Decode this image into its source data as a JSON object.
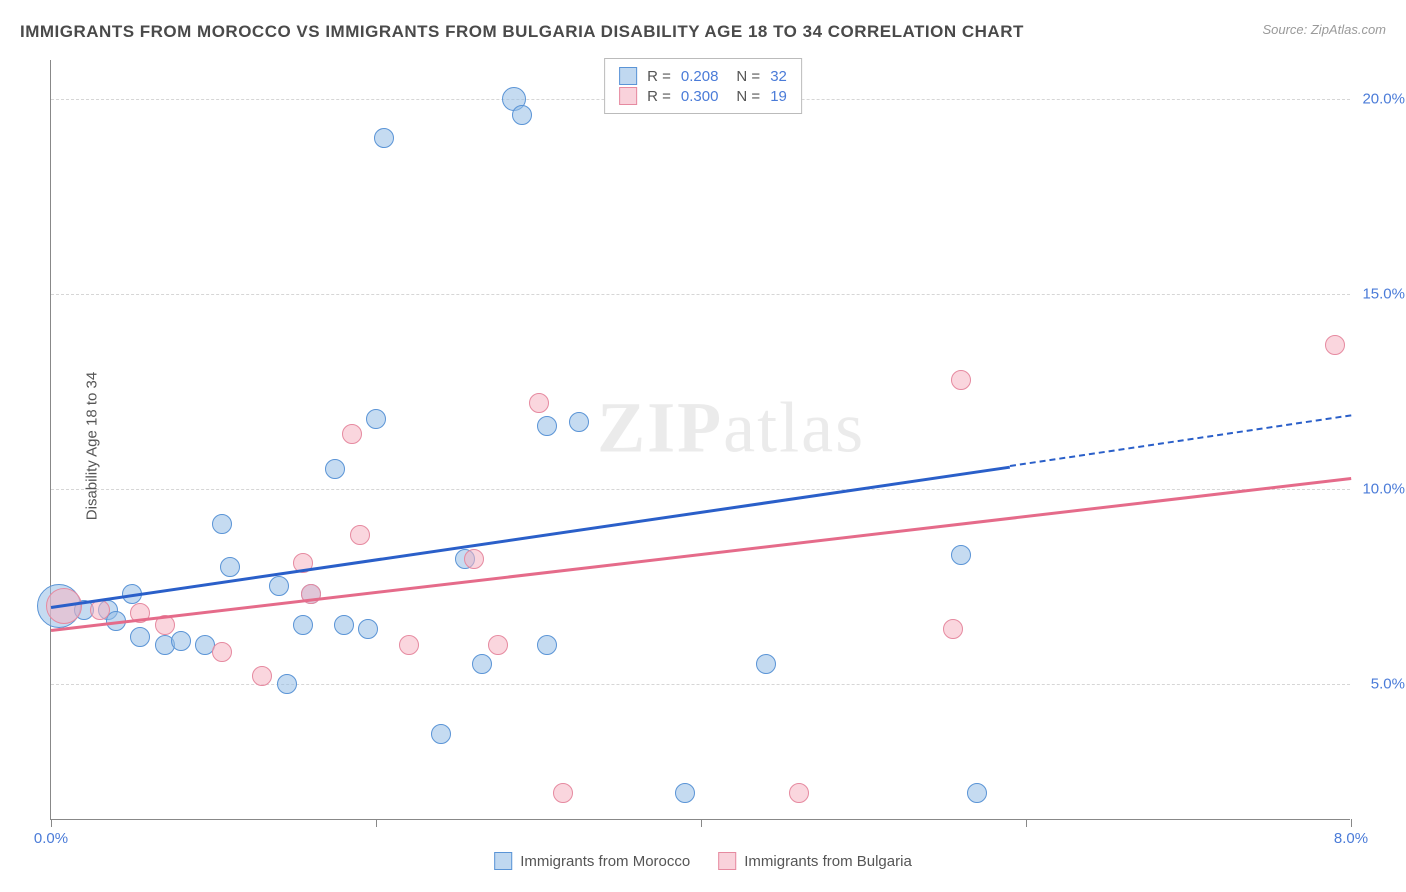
{
  "title": "IMMIGRANTS FROM MOROCCO VS IMMIGRANTS FROM BULGARIA DISABILITY AGE 18 TO 34 CORRELATION CHART",
  "source": "Source: ZipAtlas.com",
  "yaxis_label": "Disability Age 18 to 34",
  "watermark": {
    "part1": "ZIP",
    "part2": "atlas"
  },
  "chart": {
    "type": "scatter",
    "xlim": [
      0,
      8
    ],
    "ylim": [
      1.5,
      21
    ],
    "xtick_positions": [
      0,
      2,
      4,
      6,
      8
    ],
    "xtick_labels": [
      "0.0%",
      null,
      null,
      null,
      "8.0%"
    ],
    "ytick_positions": [
      5,
      10,
      15,
      20
    ],
    "ytick_labels": [
      "5.0%",
      "10.0%",
      "15.0%",
      "20.0%"
    ],
    "grid_color": "#d6d6d6",
    "background_color": "#ffffff",
    "marker_radius": 10,
    "series": [
      {
        "name": "Immigrants from Morocco",
        "color_fill": "rgba(150,190,230,0.55)",
        "color_stroke": "#5a94d6",
        "trend_color": "#2a5fc9",
        "R": "0.208",
        "N": "32",
        "trend": {
          "x1": 0,
          "y1": 7.0,
          "x2": 5.9,
          "y2": 10.6,
          "dash_to_x": 8.0,
          "dash_to_y": 11.9
        },
        "points": [
          {
            "x": 0.05,
            "y": 7.0,
            "r": 22
          },
          {
            "x": 0.2,
            "y": 6.9
          },
          {
            "x": 0.35,
            "y": 6.9
          },
          {
            "x": 0.4,
            "y": 6.6
          },
          {
            "x": 0.5,
            "y": 7.3
          },
          {
            "x": 0.55,
            "y": 6.2
          },
          {
            "x": 0.7,
            "y": 6.0
          },
          {
            "x": 0.8,
            "y": 6.1
          },
          {
            "x": 0.95,
            "y": 6.0
          },
          {
            "x": 1.05,
            "y": 9.1
          },
          {
            "x": 1.1,
            "y": 8.0
          },
          {
            "x": 1.4,
            "y": 7.5
          },
          {
            "x": 1.45,
            "y": 5.0
          },
          {
            "x": 1.55,
            "y": 6.5
          },
          {
            "x": 1.6,
            "y": 7.3
          },
          {
            "x": 1.75,
            "y": 10.5
          },
          {
            "x": 1.8,
            "y": 6.5
          },
          {
            "x": 1.95,
            "y": 6.4
          },
          {
            "x": 2.0,
            "y": 11.8
          },
          {
            "x": 2.05,
            "y": 19.0
          },
          {
            "x": 2.4,
            "y": 3.7
          },
          {
            "x": 2.55,
            "y": 8.2
          },
          {
            "x": 2.65,
            "y": 5.5
          },
          {
            "x": 2.85,
            "y": 20.0,
            "r": 12
          },
          {
            "x": 2.9,
            "y": 19.6
          },
          {
            "x": 3.05,
            "y": 11.6
          },
          {
            "x": 3.05,
            "y": 6.0
          },
          {
            "x": 3.25,
            "y": 11.7
          },
          {
            "x": 3.9,
            "y": 2.2
          },
          {
            "x": 4.4,
            "y": 5.5
          },
          {
            "x": 5.6,
            "y": 8.3
          },
          {
            "x": 5.7,
            "y": 2.2
          }
        ]
      },
      {
        "name": "Immigrants from Bulgaria",
        "color_fill": "rgba(245,180,195,0.55)",
        "color_stroke": "#e68aa0",
        "trend_color": "#e56b8a",
        "R": "0.300",
        "N": "19",
        "trend": {
          "x1": 0,
          "y1": 6.4,
          "x2": 8.0,
          "y2": 10.3
        },
        "points": [
          {
            "x": 0.08,
            "y": 7.0,
            "r": 18
          },
          {
            "x": 0.3,
            "y": 6.9
          },
          {
            "x": 0.55,
            "y": 6.8
          },
          {
            "x": 0.7,
            "y": 6.5
          },
          {
            "x": 1.05,
            "y": 5.8
          },
          {
            "x": 1.3,
            "y": 5.2
          },
          {
            "x": 1.55,
            "y": 8.1
          },
          {
            "x": 1.6,
            "y": 7.3
          },
          {
            "x": 1.85,
            "y": 11.4
          },
          {
            "x": 1.9,
            "y": 8.8
          },
          {
            "x": 2.2,
            "y": 6.0
          },
          {
            "x": 2.6,
            "y": 8.2
          },
          {
            "x": 2.75,
            "y": 6.0
          },
          {
            "x": 3.0,
            "y": 12.2
          },
          {
            "x": 3.15,
            "y": 2.2
          },
          {
            "x": 4.6,
            "y": 2.2
          },
          {
            "x": 5.55,
            "y": 6.4
          },
          {
            "x": 5.6,
            "y": 12.8
          },
          {
            "x": 7.9,
            "y": 13.7
          }
        ]
      }
    ]
  },
  "legend_top": {
    "rows": [
      {
        "swatch": "blue",
        "r_label": "R =",
        "r_val": "0.208",
        "n_label": "N =",
        "n_val": "32"
      },
      {
        "swatch": "pink",
        "r_label": "R =",
        "r_val": "0.300",
        "n_label": "N =",
        "n_val": "19"
      }
    ]
  },
  "legend_bottom": {
    "items": [
      {
        "swatch": "blue",
        "label": "Immigrants from Morocco"
      },
      {
        "swatch": "pink",
        "label": "Immigrants from Bulgaria"
      }
    ]
  }
}
